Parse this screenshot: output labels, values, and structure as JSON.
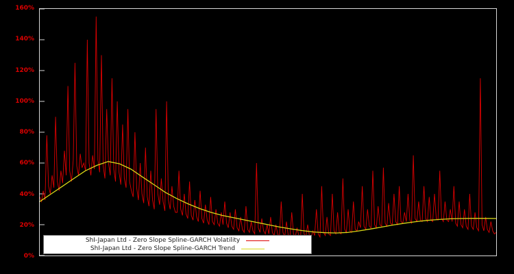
{
  "chart_data": {
    "type": "line",
    "title": "",
    "xlabel": "",
    "ylabel": "",
    "x_axis_labels_visible": false,
    "ylim": [
      0,
      160
    ],
    "yticks": [
      0,
      20,
      40,
      60,
      80,
      100,
      120,
      140,
      160
    ],
    "ytick_labels": [
      "0%",
      "20%",
      "40%",
      "60%",
      "80%",
      "100%",
      "120%",
      "140%",
      "160%"
    ],
    "grid": false,
    "legend_position": "bottom-left-inside",
    "background_color": "#000000",
    "frame_color": "#d9d9d9",
    "axis_label_color": "#dd0000",
    "series": [
      {
        "name": "ShI-Japan Ltd - Zero Slope Spline-GARCH Volatility",
        "color": "#dd0000",
        "width": 0.9,
        "values": [
          38,
          35,
          42,
          36,
          78,
          45,
          40,
          52,
          44,
          90,
          48,
          42,
          55,
          47,
          68,
          52,
          110,
          55,
          48,
          62,
          125,
          58,
          52,
          66,
          57,
          60,
          55,
          140,
          60,
          52,
          65,
          56,
          155,
          62,
          54,
          130,
          58,
          50,
          95,
          60,
          52,
          115,
          56,
          48,
          100,
          54,
          46,
          85,
          50,
          44,
          95,
          48,
          42,
          38,
          80,
          44,
          36,
          60,
          40,
          34,
          70,
          38,
          32,
          55,
          36,
          30,
          95,
          40,
          33,
          50,
          35,
          29,
          100,
          36,
          30,
          45,
          32,
          28,
          28,
          55,
          30,
          26,
          40,
          27,
          24,
          48,
          26,
          23,
          36,
          25,
          22,
          42,
          24,
          21,
          33,
          23,
          20,
          38,
          22,
          20,
          30,
          21,
          19,
          28,
          20,
          35,
          21,
          18,
          28,
          19,
          17,
          30,
          18,
          16,
          25,
          17,
          15,
          32,
          17,
          15,
          22,
          16,
          14,
          60,
          18,
          15,
          24,
          16,
          14,
          20,
          14,
          25,
          15,
          13,
          20,
          14,
          12,
          35,
          15,
          12,
          22,
          13,
          12,
          28,
          14,
          12,
          18,
          13,
          11,
          40,
          14,
          12,
          20,
          13,
          12,
          16,
          13,
          30,
          14,
          12,
          45,
          15,
          13,
          25,
          14,
          13,
          40,
          16,
          14,
          28,
          15,
          14,
          50,
          17,
          15,
          30,
          16,
          15,
          35,
          17,
          16,
          22,
          18,
          45,
          19,
          17,
          30,
          19,
          18,
          55,
          20,
          18,
          32,
          20,
          19,
          57,
          21,
          19,
          34,
          21,
          20,
          40,
          22,
          20,
          45,
          22,
          21,
          28,
          22,
          40,
          23,
          21,
          65,
          24,
          22,
          35,
          23,
          22,
          45,
          24,
          22,
          38,
          23,
          22,
          40,
          24,
          23,
          55,
          24,
          22,
          35,
          23,
          22,
          30,
          22,
          45,
          21,
          19,
          35,
          20,
          18,
          30,
          19,
          17,
          40,
          19,
          17,
          28,
          18,
          16,
          115,
          20,
          16,
          25,
          17,
          15,
          22,
          16,
          14,
          15
        ]
      },
      {
        "name": "ShI-Japan Ltd - Zero Slope Spline-GARCH Trend",
        "color": "#d9d916",
        "width": 1.3,
        "values": [
          35,
          40,
          45,
          50,
          55,
          58.5,
          61,
          59.5,
          56,
          51,
          46,
          41,
          37,
          33.5,
          30.5,
          28,
          26,
          24.5,
          23,
          21.5,
          20,
          18.5,
          17.3,
          16.2,
          15.3,
          14.8,
          14.6,
          15,
          16,
          17.2,
          18.5,
          19.8,
          21,
          22,
          22.8,
          23.4,
          23.8,
          24,
          24.1,
          24.1,
          24
        ]
      }
    ]
  }
}
